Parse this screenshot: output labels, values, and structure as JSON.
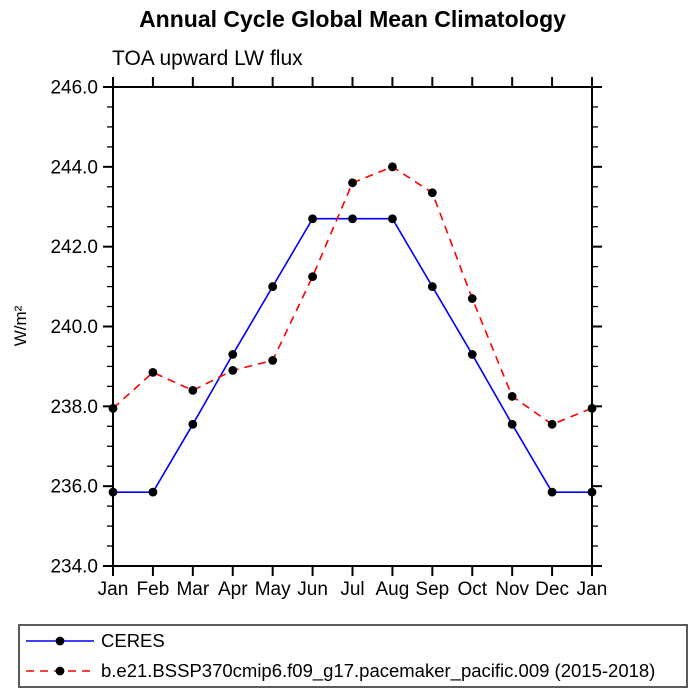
{
  "chart_data": {
    "type": "line",
    "title": "Annual Cycle Global Mean Climatology",
    "subtitle": "TOA upward LW flux",
    "ylabel": "W/m²",
    "xlabel": "",
    "categories": [
      "Jan",
      "Feb",
      "Mar",
      "Apr",
      "May",
      "Jun",
      "Jul",
      "Aug",
      "Sep",
      "Oct",
      "Nov",
      "Dec",
      "Jan"
    ],
    "series": [
      {
        "name": "CERES",
        "color": "#0000ff",
        "line_style": "solid",
        "marker": "filled-circle",
        "marker_color": "#000000",
        "values": [
          235.85,
          235.85,
          237.55,
          239.3,
          241.0,
          242.7,
          242.7,
          242.7,
          241.0,
          239.3,
          237.55,
          235.85,
          235.85
        ]
      },
      {
        "name": "b.e21.BSSP370cmip6.f09_g17.pacemaker_pacific.009 (2015-2018)",
        "color": "#ff0000",
        "line_style": "dashed",
        "marker": "filled-circle",
        "marker_color": "#000000",
        "values": [
          237.95,
          238.85,
          238.4,
          238.9,
          239.15,
          241.25,
          243.6,
          244.0,
          243.35,
          240.7,
          238.25,
          237.55,
          237.95
        ]
      }
    ],
    "ylim": [
      234.0,
      246.0
    ],
    "ytick_major_step": 2.0,
    "ytick_minor_step": 0.5,
    "ytick_major_labels": [
      "234.0",
      "236.0",
      "238.0",
      "240.0",
      "242.0",
      "244.0",
      "246.0"
    ],
    "grid": false,
    "legend_position": "bottom-left-box",
    "frame": "full-box-outward-ticks"
  }
}
